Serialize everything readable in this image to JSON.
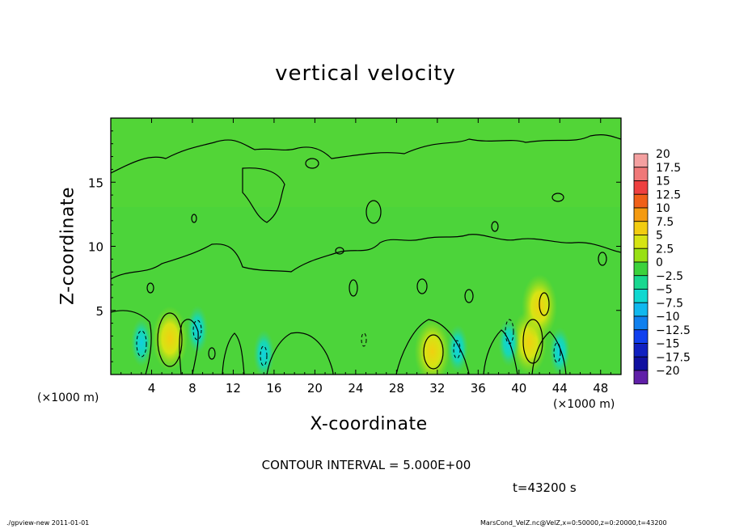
{
  "chart_data": {
    "type": "heatmap",
    "title": "vertical velocity",
    "xlabel": "X-coordinate",
    "ylabel": "Z-coordinate",
    "x_unit": "(×1000 m)",
    "xlim": [
      0,
      50
    ],
    "ylim": [
      0,
      20
    ],
    "x_ticks": [
      4,
      8,
      12,
      16,
      20,
      24,
      28,
      32,
      36,
      40,
      44,
      48
    ],
    "y_ticks": [
      5,
      10,
      15
    ],
    "contour_interval_label": "CONTOUR INTERVAL = 5.000E+00",
    "time_label": "t=43200 s",
    "colorbar": {
      "levels": [
        "20",
        "17.5",
        "15",
        "12.5",
        "10",
        "7.5",
        "5",
        "2.5",
        "0",
        "-2.5",
        "-5",
        "-7.5",
        "-10",
        "-12.5",
        "-15",
        "-17.5",
        "-20"
      ],
      "colors": [
        "#f4a0a0",
        "#f07878",
        "#ee4040",
        "#f06018",
        "#f49a10",
        "#f2cc10",
        "#d6e414",
        "#98e014",
        "#3cd23c",
        "#18d890",
        "#10d8d0",
        "#10b8ee",
        "#1080ee",
        "#1040ee",
        "#1020c0",
        "#1010a0",
        "#6020a8"
      ]
    },
    "features": [
      {
        "type": "updraft",
        "x": 5.8,
        "z": 2.8,
        "peak": 7.5
      },
      {
        "type": "updraft",
        "x": 31.5,
        "z": 1.8,
        "peak": 5
      },
      {
        "type": "updraft",
        "x": 41.0,
        "z": 2.5,
        "peak": 5
      },
      {
        "type": "updraft",
        "x": 42.0,
        "z": 5.3,
        "peak": 5
      },
      {
        "type": "downdraft",
        "x": 3.0,
        "z": 2.5,
        "peak": -5
      },
      {
        "type": "downdraft",
        "x": 8.5,
        "z": 3.5,
        "peak": -5
      },
      {
        "type": "downdraft",
        "x": 15.0,
        "z": 1.6,
        "peak": -5
      },
      {
        "type": "downdraft",
        "x": 34.0,
        "z": 2.0,
        "peak": -5
      },
      {
        "type": "downdraft",
        "x": 39.0,
        "z": 2.5,
        "peak": -5
      },
      {
        "type": "downdraft",
        "x": 44.0,
        "z": 1.8,
        "peak": -5
      }
    ]
  },
  "footer": {
    "left": "./gpview-new  2011-01-01",
    "right": "MarsCond_VelZ.nc@VelZ,x=0:50000,z=0:20000,t=43200"
  }
}
